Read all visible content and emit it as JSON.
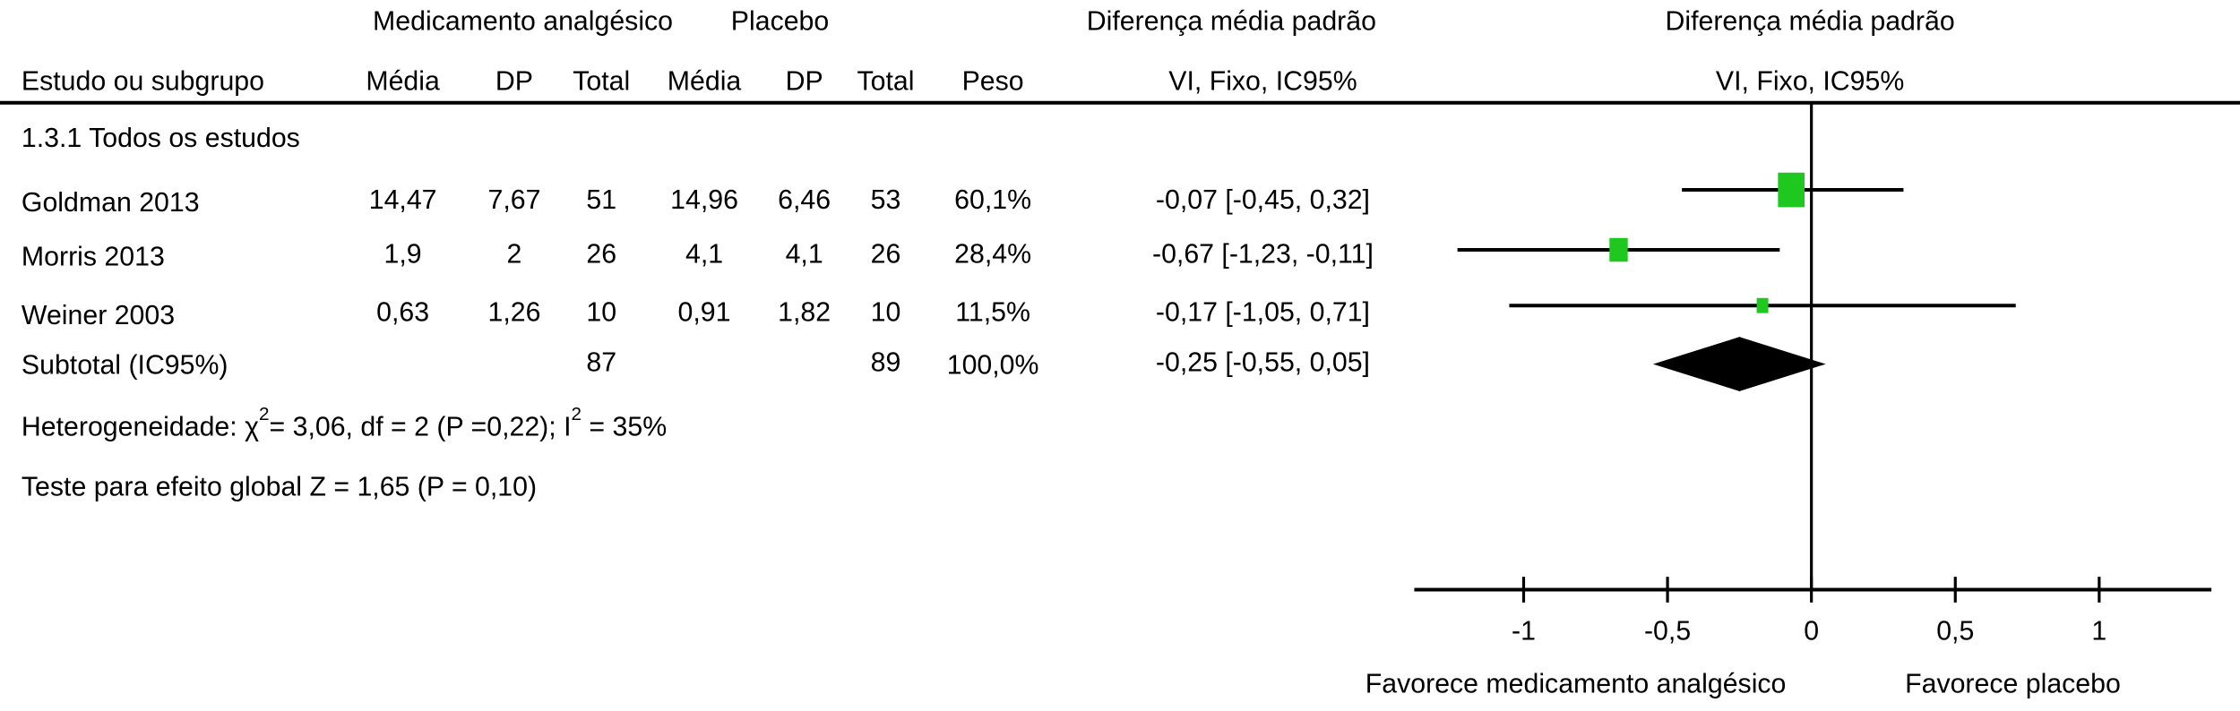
{
  "chart_data": {
    "type": "forest",
    "header": {
      "group1": "Medicamento analgésico",
      "group2": "Placebo",
      "effect_table": "Diferença média padrão",
      "effect_plot": "Diferença média padrão",
      "columns": [
        "Estudo ou subgrupo",
        "Média",
        "DP",
        "Total",
        "Média",
        "DP",
        "Total",
        "Peso",
        "VI, Fixo, IC95%"
      ],
      "method_plot": "VI, Fixo, IC95%"
    },
    "subgroup": "1.3.1 Todos os estudos",
    "studies": [
      {
        "name": "Goldman 2013",
        "mean1": "14,47",
        "sd1": "7,67",
        "total1": 51,
        "mean2": "14,96",
        "sd2": "6,46",
        "total2": 53,
        "weight": 60.1,
        "weight_label": "60,1%",
        "effect": -0.07,
        "ci": [
          -0.45,
          0.32
        ],
        "ci_label": "-0,07 [-0,45, 0,32]"
      },
      {
        "name": "Morris 2013",
        "mean1": "1,9",
        "sd1": 2,
        "total1": 26,
        "mean2": "4,1",
        "sd2": "4,1",
        "total2": 26,
        "weight": 28.4,
        "weight_label": "28,4%",
        "effect": -0.67,
        "ci": [
          -1.23,
          -0.11
        ],
        "ci_label": "-0,67 [-1,23, -0,11]"
      },
      {
        "name": "Weiner 2003",
        "mean1": "0,63",
        "sd1": "1,26",
        "total1": 10,
        "mean2": "0,91",
        "sd2": "1,82",
        "total2": 10,
        "weight": 11.5,
        "weight_label": "11,5%",
        "effect": -0.17,
        "ci": [
          -1.05,
          0.71
        ],
        "ci_label": "-0,17 [-1,05, 0,71]"
      }
    ],
    "subtotal": {
      "name": "Subtotal (IC95%)",
      "total1": 87,
      "total2": 89,
      "weight_label": "100,0%",
      "effect": -0.25,
      "ci": [
        -0.55,
        0.05
      ],
      "ci_label": "-0,25 [-0,55, 0,05]"
    },
    "heterogeneity": [
      "Heterogeneidade: χ",
      "2",
      "= 3,06, df = 2 (P =0,22); I",
      "2",
      " = 35%"
    ],
    "overall_test": "Teste para efeito global  Z = 1,65 (P = 0,10)",
    "xlim": [
      -1.38,
      1.39
    ],
    "xticks": [
      -1,
      {
        "value": -0.5,
        "label": "-0,5"
      },
      0,
      {
        "value": 0.5,
        "label": "0,5"
      },
      1
    ],
    "favours_left": "Favorece medicamento analgésico",
    "favours_right": "Favorece placebo",
    "marker_color": "#1ec81e"
  }
}
